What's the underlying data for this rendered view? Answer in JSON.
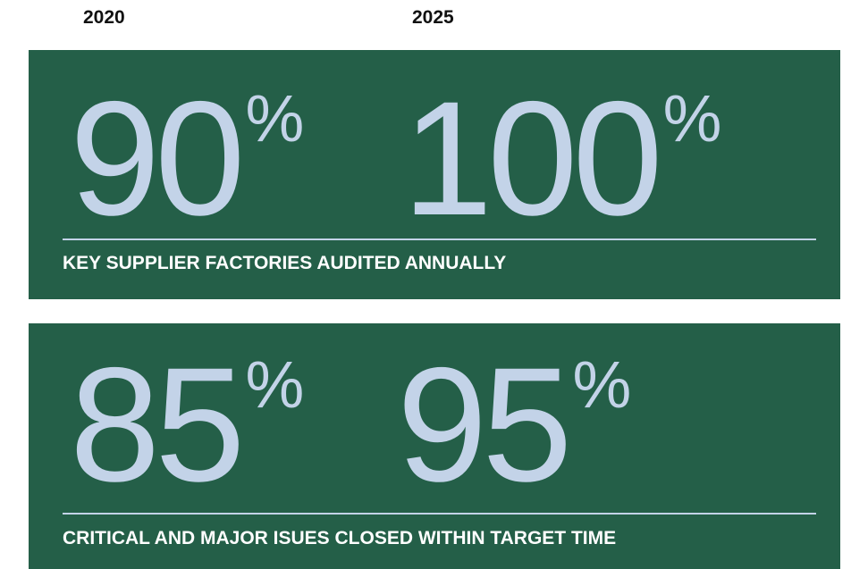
{
  "header": {
    "years": [
      "2020",
      "2025"
    ]
  },
  "panels": [
    {
      "figures": [
        {
          "value": 90,
          "unit": "%"
        },
        {
          "value": 100,
          "unit": "%"
        }
      ],
      "label": "KEY SUPPLIER FACTORIES AUDITED ANNUALLY"
    },
    {
      "figures": [
        {
          "value": 85,
          "unit": "%"
        },
        {
          "value": 95,
          "unit": "%"
        }
      ],
      "label": "CRITICAL AND MAJOR ISUES CLOSED WITHIN TARGET TIME"
    }
  ]
}
